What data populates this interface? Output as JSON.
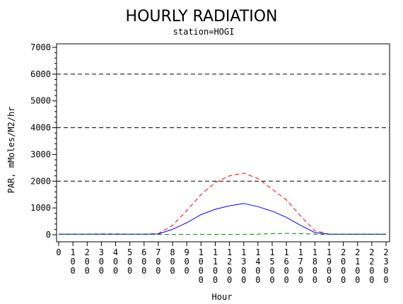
{
  "chart_data": {
    "type": "line",
    "title": "HOURLY RADIATION",
    "subtitle": "station=HOGI",
    "xlabel": "Hour",
    "ylabel": "PAR, mMoles/M2/hr",
    "ylim": [
      0,
      7000
    ],
    "xlim": [
      0,
      2300
    ],
    "y_ticks": [
      "0",
      "1000",
      "2000",
      "3000",
      "4000",
      "5000",
      "6000",
      "7000"
    ],
    "x_ticks": [
      "0",
      "100",
      "200",
      "300",
      "400",
      "500",
      "600",
      "700",
      "800",
      "900",
      "1000",
      "1100",
      "1200",
      "1300",
      "1400",
      "1500",
      "1600",
      "1700",
      "1800",
      "1900",
      "2000",
      "2100",
      "2200",
      "2300"
    ],
    "reference_lines": [
      2000,
      4000,
      6000
    ],
    "x": [
      0,
      100,
      200,
      300,
      400,
      500,
      600,
      700,
      800,
      900,
      1000,
      1100,
      1200,
      1300,
      1400,
      1500,
      1600,
      1700,
      1800,
      1900,
      2000,
      2100,
      2200,
      2300
    ],
    "series": [
      {
        "style": "dashed",
        "color": "#ff0000",
        "values": [
          20,
          20,
          20,
          30,
          30,
          20,
          20,
          40,
          350,
          900,
          1500,
          1950,
          2200,
          2300,
          2100,
          1700,
          1300,
          700,
          150,
          20,
          20,
          20,
          20,
          20
        ]
      },
      {
        "style": "solid",
        "color": "#0000ff",
        "values": [
          20,
          20,
          20,
          20,
          20,
          20,
          20,
          30,
          200,
          450,
          750,
          950,
          1080,
          1170,
          1050,
          880,
          650,
          350,
          80,
          20,
          20,
          20,
          20,
          20
        ]
      },
      {
        "style": "dashed",
        "color": "#008000",
        "values": [
          10,
          10,
          10,
          10,
          10,
          10,
          10,
          10,
          10,
          10,
          10,
          10,
          10,
          10,
          20,
          40,
          50,
          40,
          20,
          10,
          10,
          10,
          10,
          10
        ]
      }
    ],
    "grid": false
  }
}
